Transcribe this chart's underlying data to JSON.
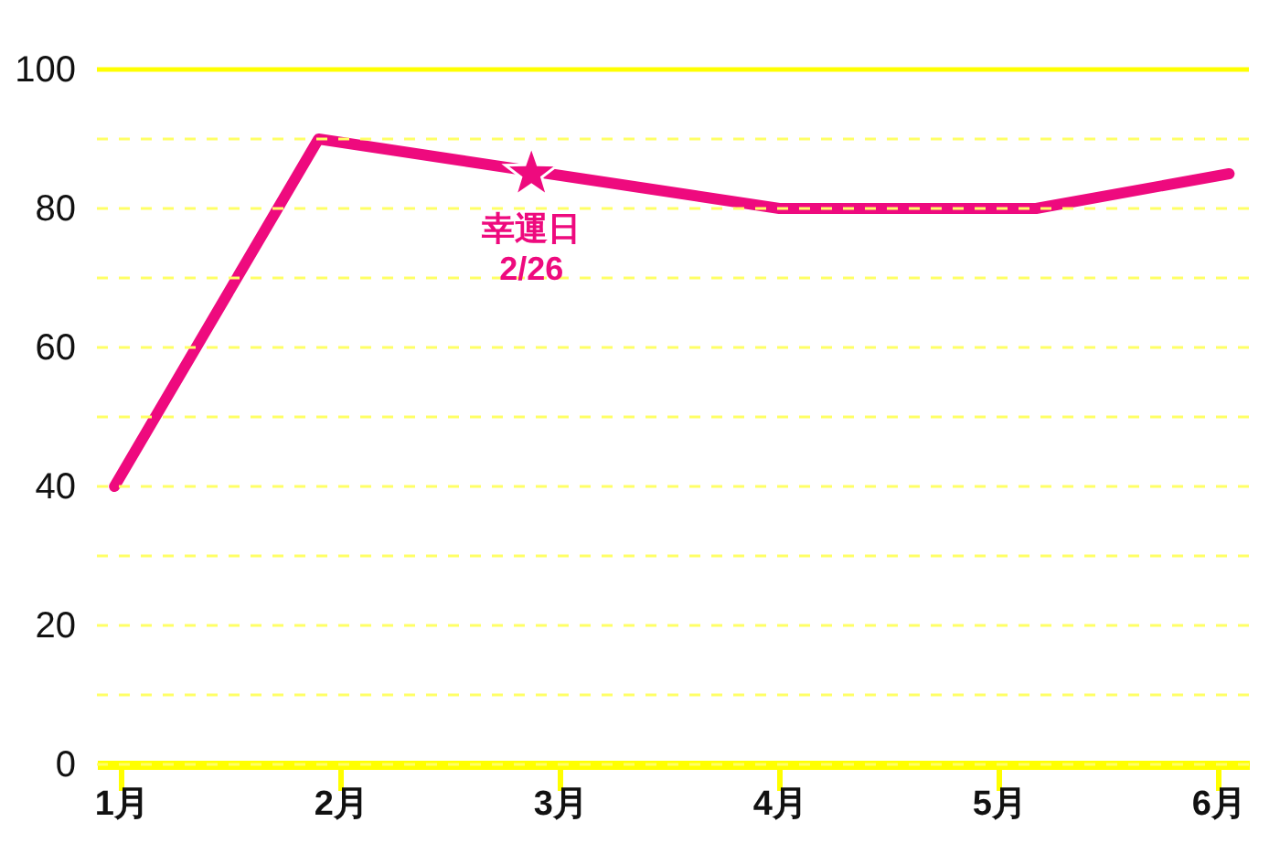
{
  "chart_data": {
    "type": "line",
    "x": [
      0.97,
      1.9,
      4.0,
      5.17,
      6.05
    ],
    "series": [
      {
        "color": "#ee0a7e",
        "values": [
          40,
          90,
          80,
          80,
          85
        ]
      }
    ],
    "xlim": [
      0.89,
      6.14
    ],
    "xticks": [
      {
        "value": 1,
        "label": "1月"
      },
      {
        "value": 2,
        "label": "2月"
      },
      {
        "value": 3,
        "label": "3月"
      },
      {
        "value": 4,
        "label": "4月"
      },
      {
        "value": 5,
        "label": "5月"
      },
      {
        "value": 6,
        "label": "6月"
      }
    ],
    "ylim": [
      0,
      100
    ],
    "yticks": [
      0,
      {
        "value": 10,
        "label": null
      },
      20,
      {
        "value": 30,
        "label": null
      },
      40,
      {
        "value": 50,
        "label": null
      },
      60,
      {
        "value": 70,
        "label": null
      },
      80,
      {
        "value": 90,
        "label": null
      },
      100
    ],
    "grid": "y",
    "marker": "none",
    "line_style": "solid",
    "annotations": [
      {
        "text": "幸運日\n2/26",
        "x": 2.87,
        "y": 85
      }
    ]
  }
}
